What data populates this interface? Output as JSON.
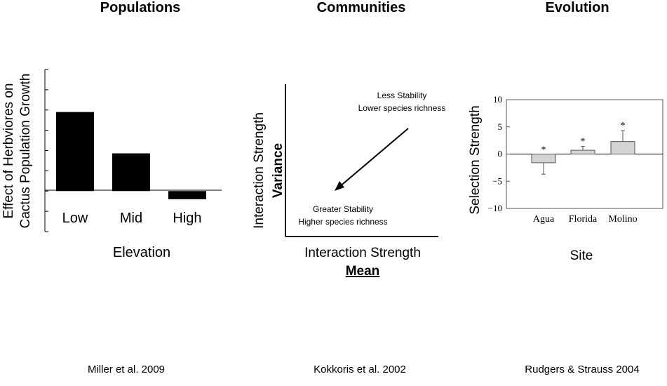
{
  "panels": [
    {
      "title": "Populations",
      "citation": "Miller et al. 2009"
    },
    {
      "title": "Communities",
      "citation": "Kokkoris et al. 2002"
    },
    {
      "title": "Evolution",
      "citation": "Rudgers & Strauss 2004"
    }
  ],
  "chart_data": [
    {
      "type": "bar",
      "title": "Populations",
      "ylabel_line1": "Effect of Herbviores on",
      "ylabel_line2": "Cactus Population Growth",
      "xlabel": "Elevation",
      "categories": [
        "Low",
        "Mid",
        "High"
      ],
      "values": [
        1.95,
        0.93,
        -0.2
      ],
      "ylim": [
        -1,
        3
      ],
      "bar_color": "#000000",
      "grid": false
    },
    {
      "type": "diagram",
      "title": "Communities",
      "ylabel_line1": "Interaction Strength",
      "ylabel_line2": "Variance",
      "xlabel_line1": "Interaction Strength",
      "xlabel_line2": "Mean",
      "annotations": {
        "top_right": [
          "Less Stability",
          "Lower species richness"
        ],
        "bottom_left": [
          "Greater Stability",
          "Higher species richness"
        ]
      },
      "arrow": "from top-right toward bottom-left"
    },
    {
      "type": "bar",
      "title": "Evolution",
      "ylabel": "Selection Strength",
      "xlabel": "Site",
      "categories": [
        "Agua",
        "Florida",
        "Molino"
      ],
      "values": [
        -1.6,
        0.7,
        2.3
      ],
      "error": [
        2.1,
        0.7,
        2.0
      ],
      "significance": [
        "*",
        "*",
        "*"
      ],
      "yticks": [
        "10",
        "5",
        "0",
        "−5",
        "−10"
      ],
      "ylim": [
        -10,
        10
      ],
      "bar_color": "#d3d3d3",
      "grid": false
    }
  ]
}
